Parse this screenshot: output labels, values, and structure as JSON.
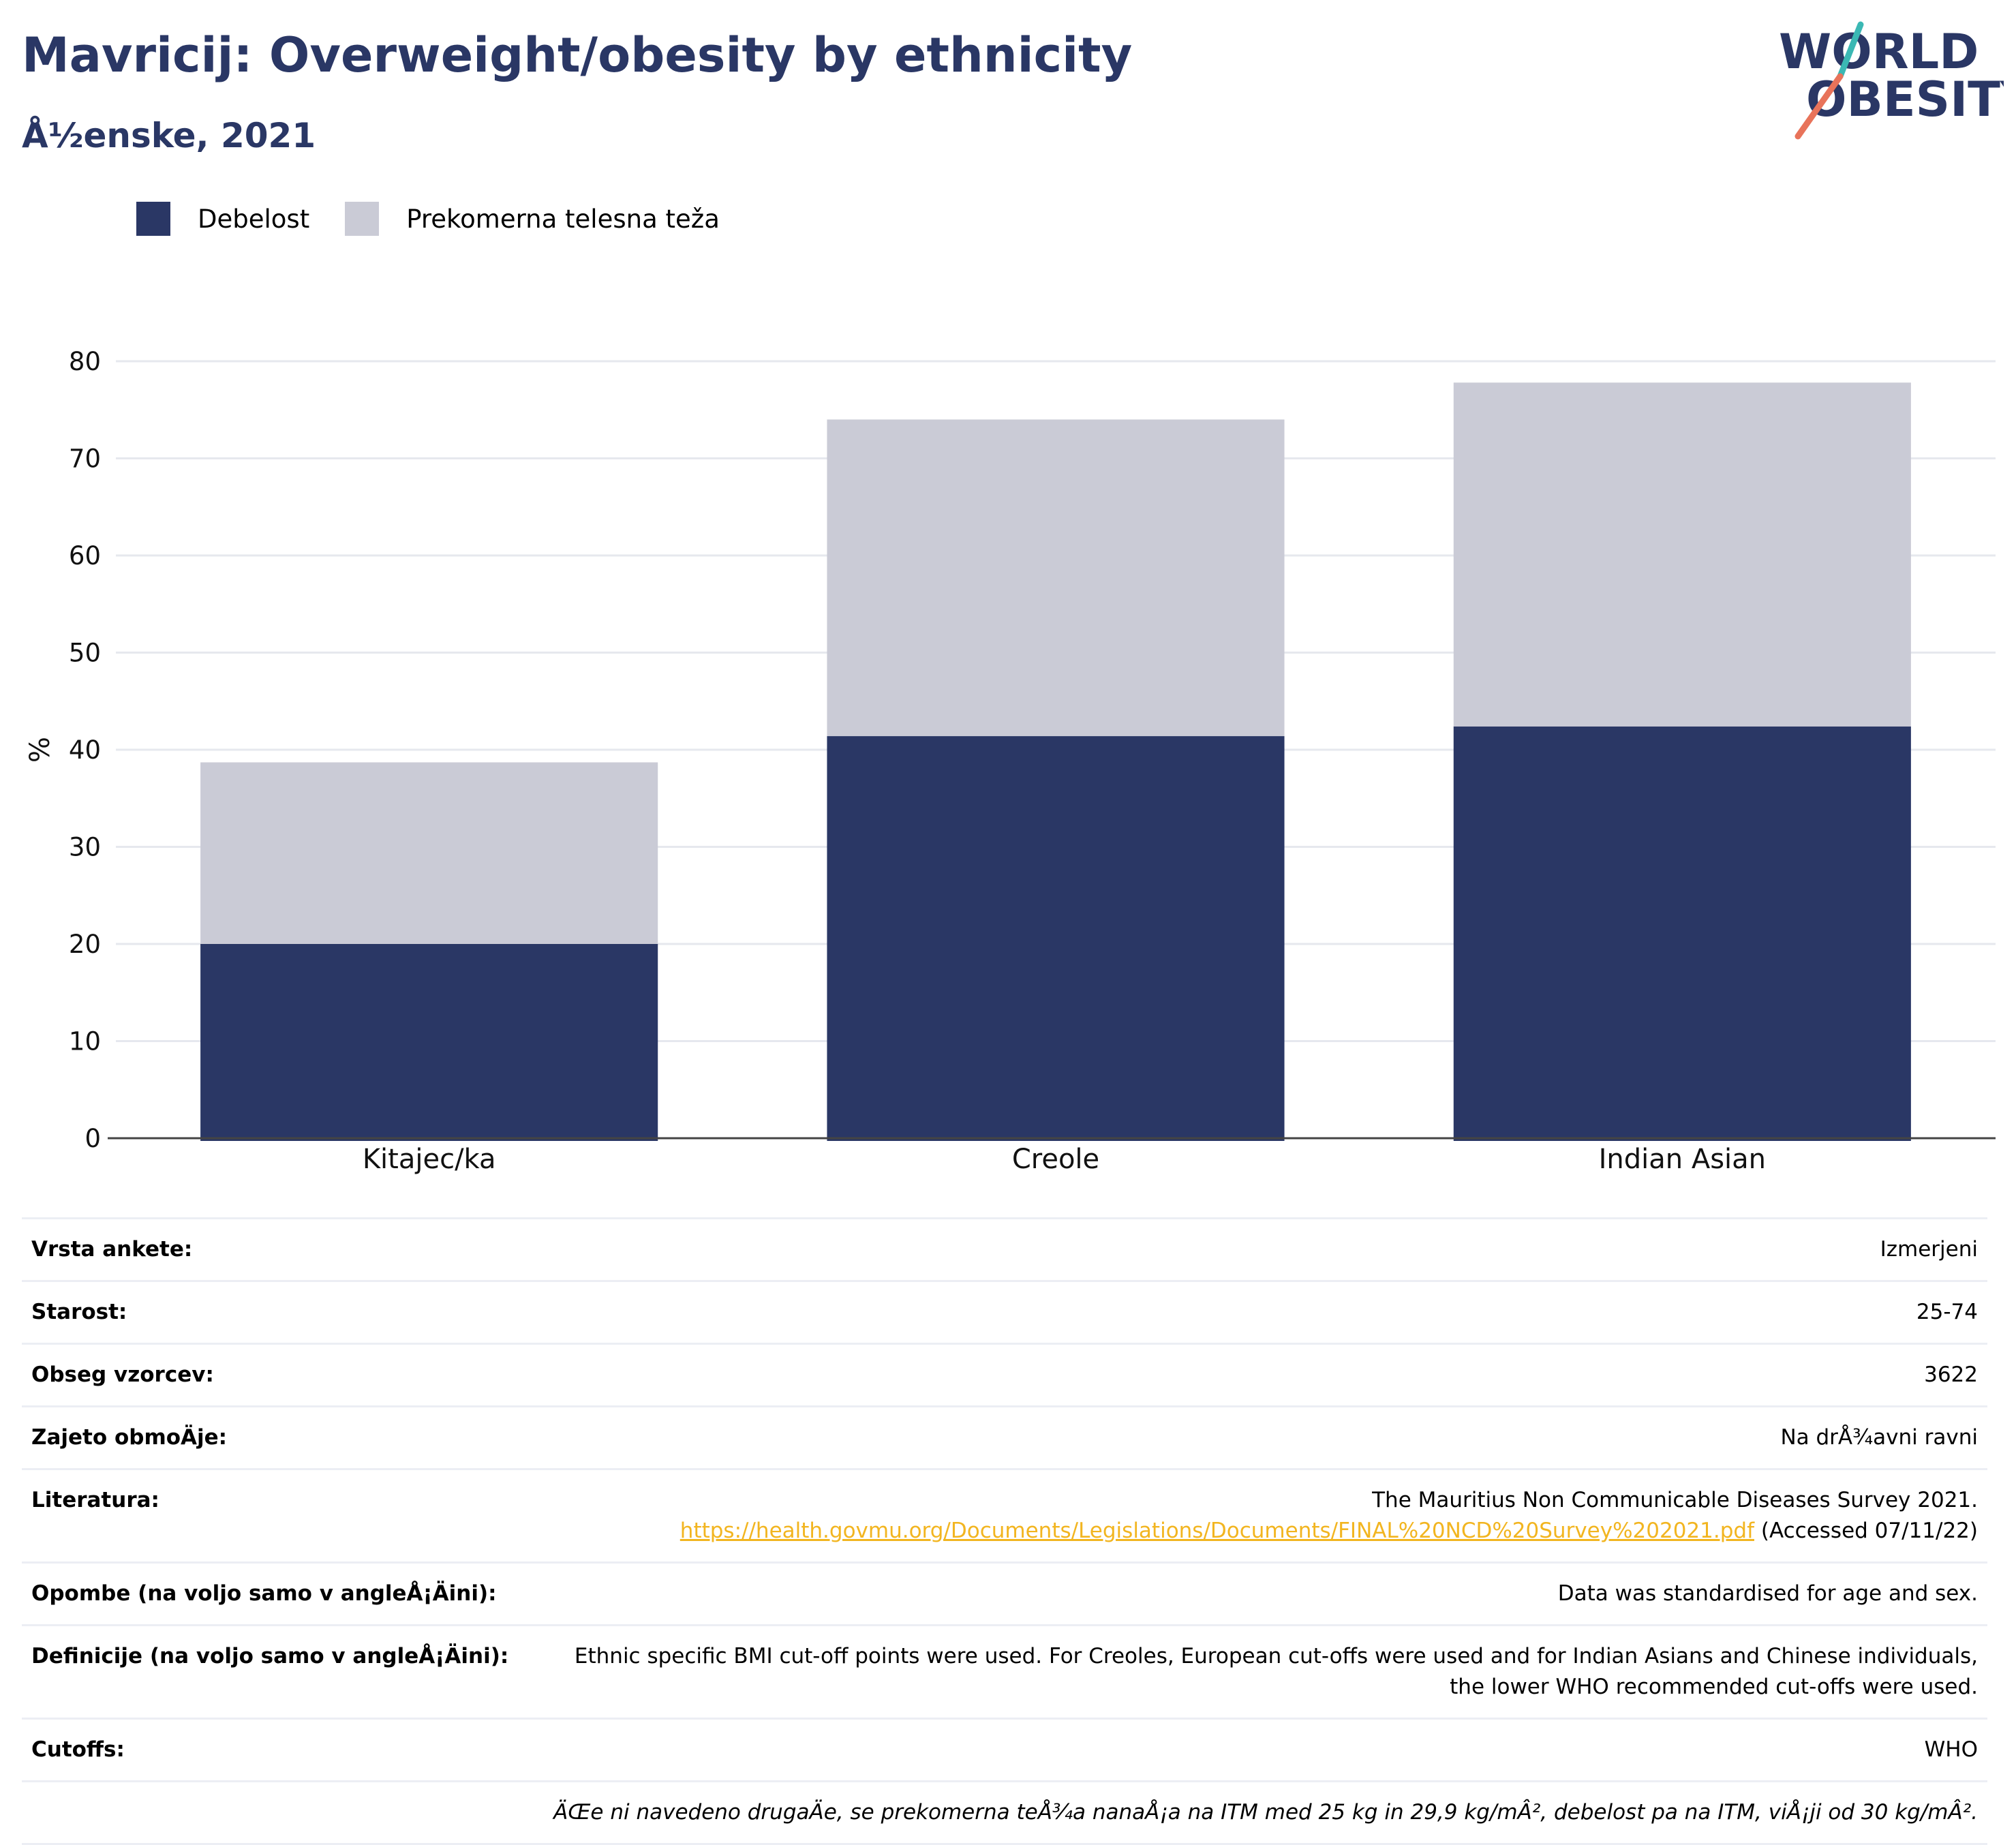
{
  "header": {
    "title": "Mavricij: Overweight/obesity by ethnicity",
    "subtitle": "Å½enske, 2021"
  },
  "logo": {
    "line1": "WORLD",
    "line2": "OBESITY",
    "slash_top_color": "#3bb8b4",
    "slash_bottom_color": "#e8735a"
  },
  "colors": {
    "obesity": "#2a3765",
    "overweight": "#cacbd6",
    "title": "#2a3765",
    "link": "#f2b520"
  },
  "legend": {
    "obesity_label": "Debelost",
    "overweight_label": "Prekomerna telesna teža"
  },
  "chart_data": {
    "type": "bar",
    "stacked": true,
    "categories": [
      "Kitajec/ka",
      "Creole",
      "Indian Asian"
    ],
    "series": [
      {
        "name": "Debelost",
        "values": [
          20.0,
          41.4,
          42.4
        ]
      },
      {
        "name": "Prekomerna telesna teža",
        "values": [
          18.7,
          32.6,
          35.4
        ]
      }
    ],
    "totals": [
      38.7,
      74.0,
      77.8
    ],
    "ylabel": "%",
    "xlabel": "",
    "ylim": [
      0,
      80
    ],
    "yticks": [
      0,
      10,
      20,
      30,
      40,
      50,
      60,
      70,
      80
    ],
    "grid": true,
    "legend_position": "top-left"
  },
  "info": {
    "rows": [
      {
        "label": "Vrsta ankete:",
        "value": "Izmerjeni"
      },
      {
        "label": "Starost:",
        "value": "25-74"
      },
      {
        "label": "Obseg vzorcev:",
        "value": "3622"
      },
      {
        "label": "Zajeto obmoÄje:",
        "value": "Na drÅ¾avni ravni"
      },
      {
        "label": "Opombe (na voljo samo v angleÅ¡Äini):",
        "value": "Data was standardised for age and sex."
      },
      {
        "label": "Definicije (na voljo samo v angleÅ¡Äini):",
        "value_line1": "Ethnic specific BMI cut-off points were used. For Creoles, European cut-offs were used and for Indian Asians and Chinese individuals,",
        "value_line2": "the lower WHO recommended cut-offs were used."
      },
      {
        "label": "Cutoffs:",
        "value": "WHO"
      }
    ],
    "literature": {
      "label": "Literatura:",
      "line1": "The Mauritius Non Communicable Diseases Survey 2021.",
      "link": "https://health.govmu.org/Documents/Legislations/Documents/FINAL%20NCD%20Survey%202021.pdf",
      "accessed": " (Accessed 07/11/22)"
    },
    "footnote": "ÄŒe ni navedeno drugaÄe, se prekomerna teÅ¾a nanaÅ¡a na ITM med 25 kg in 29,9 kg/mÂ², debelost pa na ITM, viÅ¡ji od 30 kg/mÂ²."
  }
}
